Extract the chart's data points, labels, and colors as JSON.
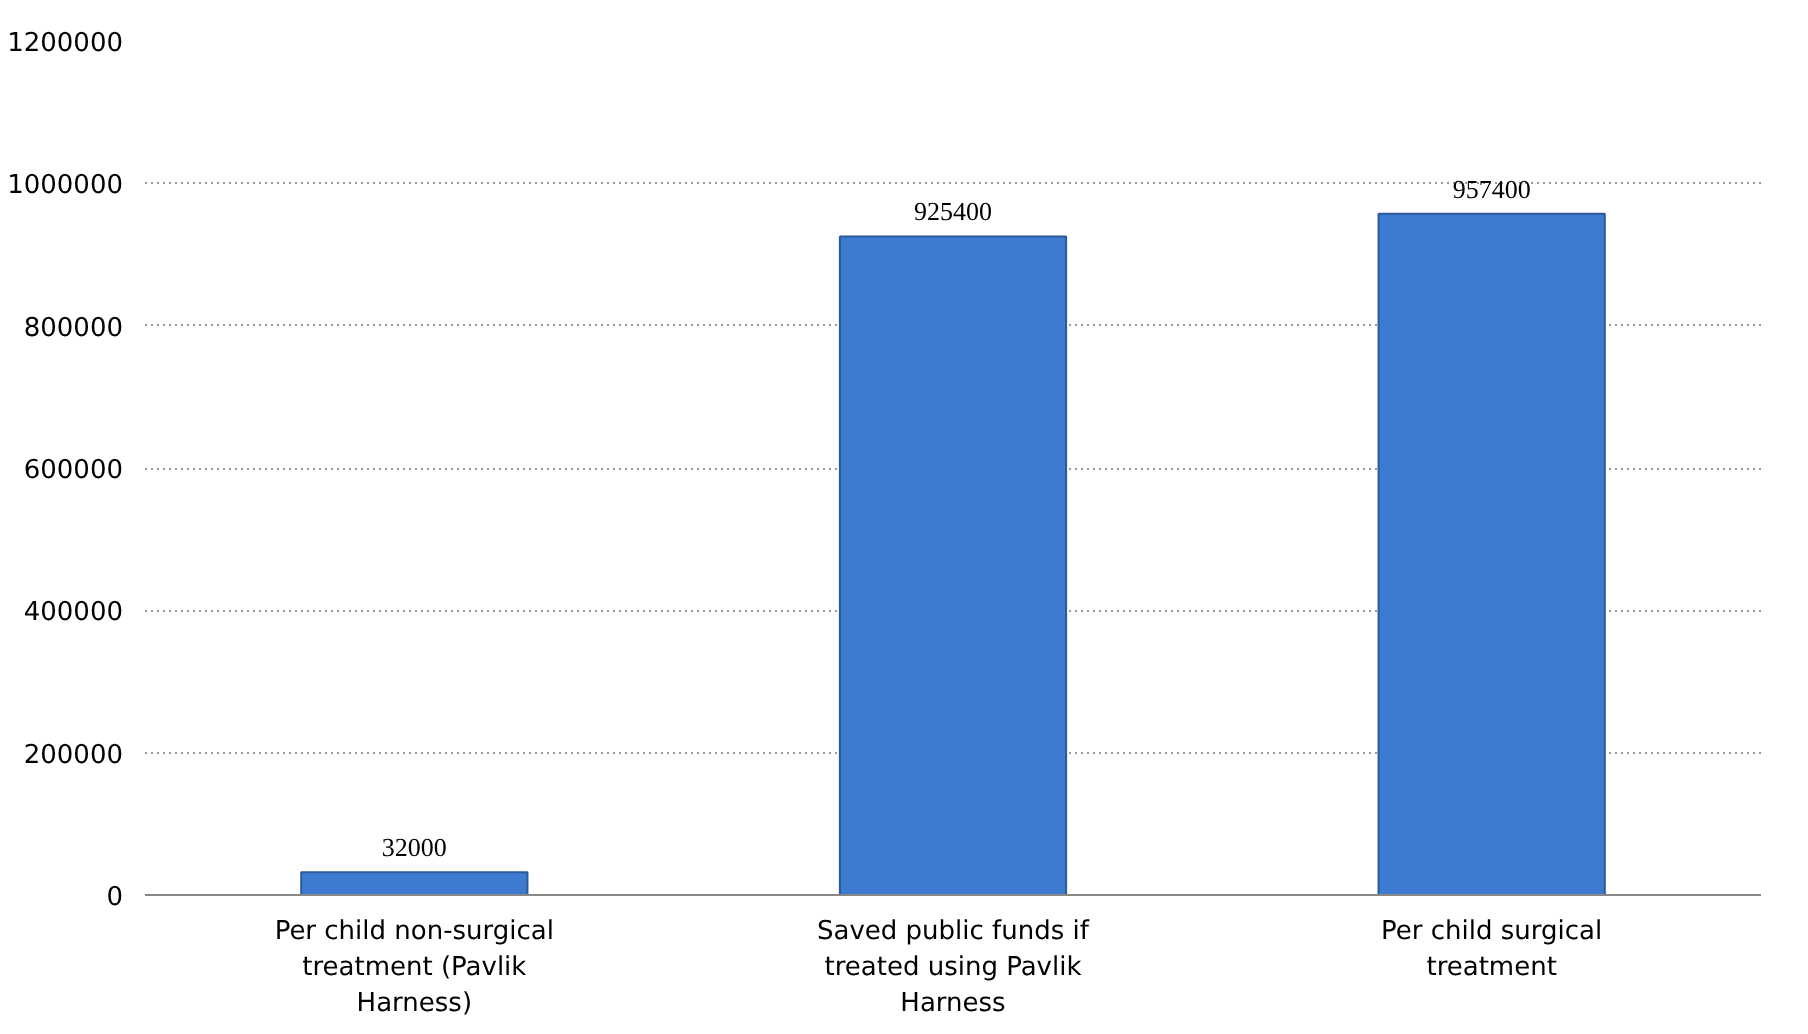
{
  "chart_data": {
    "type": "bar",
    "categories": [
      "Per child non-surgical treatment (Pavlik Harness)",
      "Saved public funds if treated using Pavlik Harness",
      "Per child surgical treatment"
    ],
    "values": [
      32000,
      925400,
      957400
    ],
    "color": "#3c7bd0",
    "ylim": [
      0,
      1200000
    ],
    "yticks": [
      0,
      200000,
      400000,
      600000,
      800000,
      1000000,
      1200000
    ],
    "grid": "y",
    "data_labels": true
  }
}
